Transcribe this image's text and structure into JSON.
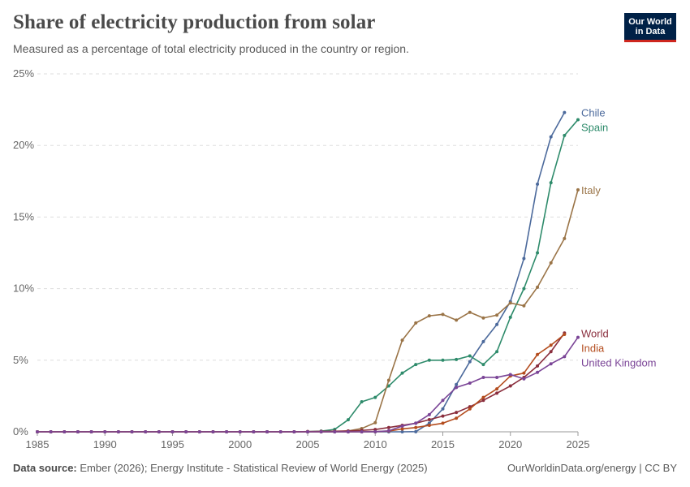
{
  "header": {
    "title": "Share of electricity production from solar",
    "subtitle": "Measured as a percentage of total electricity produced in the country or region.",
    "logo_line1": "Our World",
    "logo_line2": "in Data"
  },
  "footer": {
    "source_label": "Data source:",
    "source_text": "Ember (2026); Energy Institute - Statistical Review of World Energy (2025)",
    "credit": "OurWorldinData.org/energy | CC BY"
  },
  "chart_data": {
    "type": "line",
    "title": "Share of electricity production from solar",
    "xlim": [
      1985,
      2025
    ],
    "ylim": [
      0,
      25
    ],
    "x_ticks": [
      1985,
      1990,
      1995,
      2000,
      2005,
      2010,
      2015,
      2020,
      2025
    ],
    "y_ticks": [
      0,
      5,
      10,
      15,
      20,
      25
    ],
    "y_tick_labels": [
      "0%",
      "5%",
      "10%",
      "15%",
      "20%",
      "25%"
    ],
    "grid": "horizontal dashed",
    "legend": "labels at line ends, right",
    "series": [
      {
        "name": "Chile",
        "color": "#4c6a9c",
        "points": [
          [
            1985,
            0
          ],
          [
            1986,
            0
          ],
          [
            1987,
            0
          ],
          [
            1988,
            0
          ],
          [
            1989,
            0
          ],
          [
            1990,
            0
          ],
          [
            1991,
            0
          ],
          [
            1992,
            0
          ],
          [
            1993,
            0
          ],
          [
            1994,
            0
          ],
          [
            1995,
            0
          ],
          [
            1996,
            0
          ],
          [
            1997,
            0
          ],
          [
            1998,
            0
          ],
          [
            1999,
            0
          ],
          [
            2000,
            0
          ],
          [
            2001,
            0
          ],
          [
            2002,
            0
          ],
          [
            2003,
            0
          ],
          [
            2004,
            0
          ],
          [
            2005,
            0
          ],
          [
            2006,
            0
          ],
          [
            2007,
            0
          ],
          [
            2008,
            0
          ],
          [
            2009,
            0
          ],
          [
            2010,
            0
          ],
          [
            2011,
            0
          ],
          [
            2012,
            0
          ],
          [
            2013,
            0.01
          ],
          [
            2014,
            0.6
          ],
          [
            2015,
            1.6
          ],
          [
            2016,
            3.3
          ],
          [
            2017,
            4.9
          ],
          [
            2018,
            6.3
          ],
          [
            2019,
            7.5
          ],
          [
            2020,
            9.1
          ],
          [
            2021,
            12.1
          ],
          [
            2022,
            17.3
          ],
          [
            2023,
            20.6
          ],
          [
            2024,
            22.3
          ]
        ]
      },
      {
        "name": "Spain",
        "color": "#2e8b6b",
        "points": [
          [
            1985,
            0
          ],
          [
            1986,
            0
          ],
          [
            1987,
            0
          ],
          [
            1988,
            0
          ],
          [
            1989,
            0
          ],
          [
            1990,
            0
          ],
          [
            1991,
            0
          ],
          [
            1992,
            0
          ],
          [
            1993,
            0
          ],
          [
            1994,
            0
          ],
          [
            1995,
            0
          ],
          [
            1996,
            0
          ],
          [
            1997,
            0
          ],
          [
            1998,
            0
          ],
          [
            1999,
            0
          ],
          [
            2000,
            0
          ],
          [
            2001,
            0
          ],
          [
            2002,
            0
          ],
          [
            2003,
            0
          ],
          [
            2004,
            0
          ],
          [
            2005,
            0.01
          ],
          [
            2006,
            0.05
          ],
          [
            2007,
            0.17
          ],
          [
            2008,
            0.84
          ],
          [
            2009,
            2.1
          ],
          [
            2010,
            2.4
          ],
          [
            2011,
            3.2
          ],
          [
            2012,
            4.1
          ],
          [
            2013,
            4.7
          ],
          [
            2014,
            5.0
          ],
          [
            2015,
            5.0
          ],
          [
            2016,
            5.05
          ],
          [
            2017,
            5.3
          ],
          [
            2018,
            4.7
          ],
          [
            2019,
            5.6
          ],
          [
            2020,
            8.0
          ],
          [
            2021,
            10.0
          ],
          [
            2022,
            12.5
          ],
          [
            2023,
            17.4
          ],
          [
            2024,
            20.7
          ],
          [
            2025,
            21.8
          ]
        ]
      },
      {
        "name": "Italy",
        "color": "#9a7447",
        "points": [
          [
            1985,
            0
          ],
          [
            1986,
            0
          ],
          [
            1987,
            0
          ],
          [
            1988,
            0
          ],
          [
            1989,
            0
          ],
          [
            1990,
            0
          ],
          [
            1991,
            0
          ],
          [
            1992,
            0
          ],
          [
            1993,
            0
          ],
          [
            1994,
            0
          ],
          [
            1995,
            0
          ],
          [
            1996,
            0
          ],
          [
            1997,
            0
          ],
          [
            1998,
            0
          ],
          [
            1999,
            0
          ],
          [
            2000,
            0
          ],
          [
            2001,
            0
          ],
          [
            2002,
            0
          ],
          [
            2003,
            0
          ],
          [
            2004,
            0
          ],
          [
            2005,
            0
          ],
          [
            2006,
            0
          ],
          [
            2007,
            0.01
          ],
          [
            2008,
            0.06
          ],
          [
            2009,
            0.23
          ],
          [
            2010,
            0.64
          ],
          [
            2011,
            3.6
          ],
          [
            2012,
            6.4
          ],
          [
            2013,
            7.6
          ],
          [
            2014,
            8.1
          ],
          [
            2015,
            8.2
          ],
          [
            2016,
            7.8
          ],
          [
            2017,
            8.35
          ],
          [
            2018,
            7.95
          ],
          [
            2019,
            8.15
          ],
          [
            2020,
            9.0
          ],
          [
            2021,
            8.8
          ],
          [
            2022,
            10.1
          ],
          [
            2023,
            11.8
          ],
          [
            2024,
            13.5
          ],
          [
            2025,
            16.9
          ]
        ]
      },
      {
        "name": "World",
        "color": "#8a2e3d",
        "points": [
          [
            1985,
            0
          ],
          [
            1986,
            0
          ],
          [
            1987,
            0
          ],
          [
            1988,
            0
          ],
          [
            1989,
            0
          ],
          [
            1990,
            0
          ],
          [
            1991,
            0
          ],
          [
            1992,
            0
          ],
          [
            1993,
            0
          ],
          [
            1994,
            0
          ],
          [
            1995,
            0
          ],
          [
            1996,
            0
          ],
          [
            1997,
            0
          ],
          [
            1998,
            0
          ],
          [
            1999,
            0
          ],
          [
            2000,
            0
          ],
          [
            2001,
            0
          ],
          [
            2002,
            0
          ],
          [
            2003,
            0
          ],
          [
            2004,
            0
          ],
          [
            2005,
            0.02
          ],
          [
            2006,
            0.03
          ],
          [
            2007,
            0.04
          ],
          [
            2008,
            0.06
          ],
          [
            2009,
            0.1
          ],
          [
            2010,
            0.16
          ],
          [
            2011,
            0.3
          ],
          [
            2012,
            0.45
          ],
          [
            2013,
            0.6
          ],
          [
            2014,
            0.85
          ],
          [
            2015,
            1.1
          ],
          [
            2016,
            1.35
          ],
          [
            2017,
            1.75
          ],
          [
            2018,
            2.2
          ],
          [
            2019,
            2.7
          ],
          [
            2020,
            3.2
          ],
          [
            2021,
            3.8
          ],
          [
            2022,
            4.6
          ],
          [
            2023,
            5.6
          ],
          [
            2024,
            6.9
          ]
        ]
      },
      {
        "name": "India",
        "color": "#b44d1f",
        "points": [
          [
            1985,
            0
          ],
          [
            1986,
            0
          ],
          [
            1987,
            0
          ],
          [
            1988,
            0
          ],
          [
            1989,
            0
          ],
          [
            1990,
            0
          ],
          [
            1991,
            0
          ],
          [
            1992,
            0
          ],
          [
            1993,
            0
          ],
          [
            1994,
            0
          ],
          [
            1995,
            0
          ],
          [
            1996,
            0
          ],
          [
            1997,
            0
          ],
          [
            1998,
            0
          ],
          [
            1999,
            0
          ],
          [
            2000,
            0
          ],
          [
            2001,
            0
          ],
          [
            2002,
            0
          ],
          [
            2003,
            0
          ],
          [
            2004,
            0
          ],
          [
            2005,
            0
          ],
          [
            2006,
            0
          ],
          [
            2007,
            0
          ],
          [
            2008,
            0
          ],
          [
            2009,
            0
          ],
          [
            2010,
            0.01
          ],
          [
            2011,
            0.05
          ],
          [
            2012,
            0.2
          ],
          [
            2013,
            0.3
          ],
          [
            2014,
            0.45
          ],
          [
            2015,
            0.6
          ],
          [
            2016,
            0.95
          ],
          [
            2017,
            1.6
          ],
          [
            2018,
            2.4
          ],
          [
            2019,
            3.0
          ],
          [
            2020,
            3.9
          ],
          [
            2021,
            4.1
          ],
          [
            2022,
            5.4
          ],
          [
            2023,
            6.05
          ],
          [
            2024,
            6.8
          ]
        ]
      },
      {
        "name": "United Kingdom",
        "color": "#7b4597",
        "points": [
          [
            1985,
            0
          ],
          [
            1986,
            0
          ],
          [
            1987,
            0
          ],
          [
            1988,
            0
          ],
          [
            1989,
            0
          ],
          [
            1990,
            0
          ],
          [
            1991,
            0
          ],
          [
            1992,
            0
          ],
          [
            1993,
            0
          ],
          [
            1994,
            0
          ],
          [
            1995,
            0
          ],
          [
            1996,
            0
          ],
          [
            1997,
            0
          ],
          [
            1998,
            0
          ],
          [
            1999,
            0
          ],
          [
            2000,
            0
          ],
          [
            2001,
            0
          ],
          [
            2002,
            0
          ],
          [
            2003,
            0
          ],
          [
            2004,
            0
          ],
          [
            2005,
            0
          ],
          [
            2006,
            0
          ],
          [
            2007,
            0
          ],
          [
            2008,
            0
          ],
          [
            2009,
            0
          ],
          [
            2010,
            0.01
          ],
          [
            2011,
            0.07
          ],
          [
            2012,
            0.4
          ],
          [
            2013,
            0.6
          ],
          [
            2014,
            1.2
          ],
          [
            2015,
            2.2
          ],
          [
            2016,
            3.1
          ],
          [
            2017,
            3.4
          ],
          [
            2018,
            3.8
          ],
          [
            2019,
            3.8
          ],
          [
            2020,
            4.0
          ],
          [
            2021,
            3.7
          ],
          [
            2022,
            4.15
          ],
          [
            2023,
            4.75
          ],
          [
            2024,
            5.25
          ],
          [
            2025,
            6.6
          ]
        ]
      }
    ]
  }
}
